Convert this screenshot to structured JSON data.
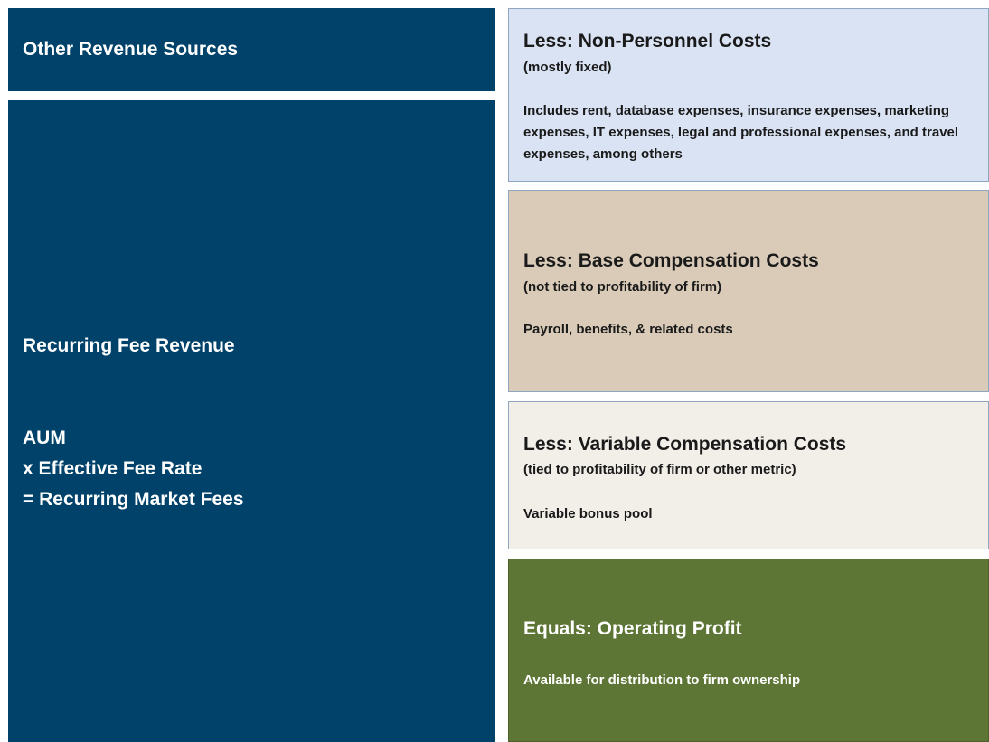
{
  "left": {
    "other": {
      "title": "Other Revenue Sources"
    },
    "recurring": {
      "title": "Recurring Fee Revenue",
      "formula": [
        "AUM",
        "x Effective Fee Rate",
        "= Recurring Market Fees"
      ]
    }
  },
  "right": [
    {
      "title": "Less: Non-Personnel Costs",
      "subtitle": "(mostly fixed)",
      "description": "Includes rent, database expenses, insurance expenses, marketing expenses, IT expenses, legal and professional expenses, and travel expenses, among others"
    },
    {
      "title": "Less: Base Compensation Costs",
      "subtitle": "(not tied to profitability of firm)",
      "description": "Payroll, benefits, & related costs"
    },
    {
      "title": "Less: Variable Compensation Costs",
      "subtitle": "(tied to profitability of firm or other metric)",
      "description": "Variable bonus pool"
    },
    {
      "title": "Equals: Operating Profit",
      "description": "Available for distribution to firm ownership"
    }
  ]
}
